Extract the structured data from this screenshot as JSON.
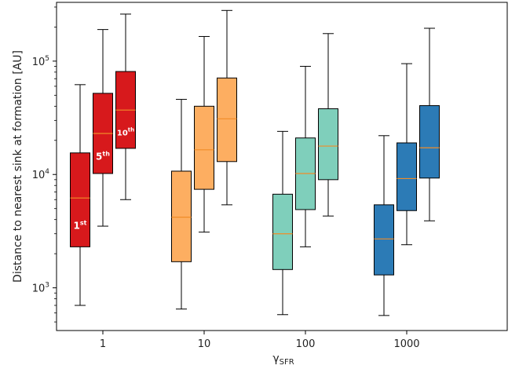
{
  "chart_data": {
    "type": "box",
    "xlabel_main": "γ",
    "xlabel_sub": "SFR",
    "ylabel": "Distance to nearest sink at formation [AU]",
    "yscale": "log",
    "ylim": [
      420,
      330000
    ],
    "y_ticks": [
      {
        "value": 1000,
        "base": "10",
        "exp": "3"
      },
      {
        "value": 10000,
        "base": "10",
        "exp": "4"
      },
      {
        "value": 100000,
        "base": "10",
        "exp": "5"
      }
    ],
    "categories": [
      "1",
      "10",
      "100",
      "1000"
    ],
    "colors": [
      "#d7191c",
      "#fdae61",
      "#7fcfbb",
      "#2c7bb6"
    ],
    "median_color": "#f08c28",
    "box_labels": [
      {
        "base": "1",
        "sup": "st"
      },
      {
        "base": "5",
        "sup": "th"
      },
      {
        "base": "10",
        "sup": "th"
      }
    ],
    "groups": [
      {
        "category": "1",
        "boxes": [
          {
            "whislo": 700,
            "q1": 2300,
            "med": 6200,
            "q3": 15500,
            "whishi": 62000
          },
          {
            "whislo": 3500,
            "q1": 10200,
            "med": 23000,
            "q3": 52000,
            "whishi": 190000
          },
          {
            "whislo": 6000,
            "q1": 17000,
            "med": 37000,
            "q3": 81000,
            "whishi": 260000
          }
        ]
      },
      {
        "category": "10",
        "boxes": [
          {
            "whislo": 650,
            "q1": 1700,
            "med": 4200,
            "q3": 10700,
            "whishi": 46000
          },
          {
            "whislo": 3100,
            "q1": 7400,
            "med": 16500,
            "q3": 40000,
            "whishi": 165000
          },
          {
            "whislo": 5400,
            "q1": 13000,
            "med": 31000,
            "q3": 71000,
            "whishi": 280000
          }
        ]
      },
      {
        "category": "100",
        "boxes": [
          {
            "whislo": 580,
            "q1": 1450,
            "med": 3000,
            "q3": 6700,
            "whishi": 24000
          },
          {
            "whislo": 2300,
            "q1": 4900,
            "med": 10200,
            "q3": 21000,
            "whishi": 90000
          },
          {
            "whislo": 4300,
            "q1": 9000,
            "med": 17800,
            "q3": 38000,
            "whishi": 175000
          }
        ]
      },
      {
        "category": "1000",
        "boxes": [
          {
            "whislo": 570,
            "q1": 1300,
            "med": 2700,
            "q3": 5400,
            "whishi": 22000
          },
          {
            "whislo": 2400,
            "q1": 4800,
            "med": 9200,
            "q3": 19000,
            "whishi": 95000
          },
          {
            "whislo": 3900,
            "q1": 9300,
            "med": 17200,
            "q3": 40500,
            "whishi": 195000
          }
        ]
      }
    ]
  }
}
